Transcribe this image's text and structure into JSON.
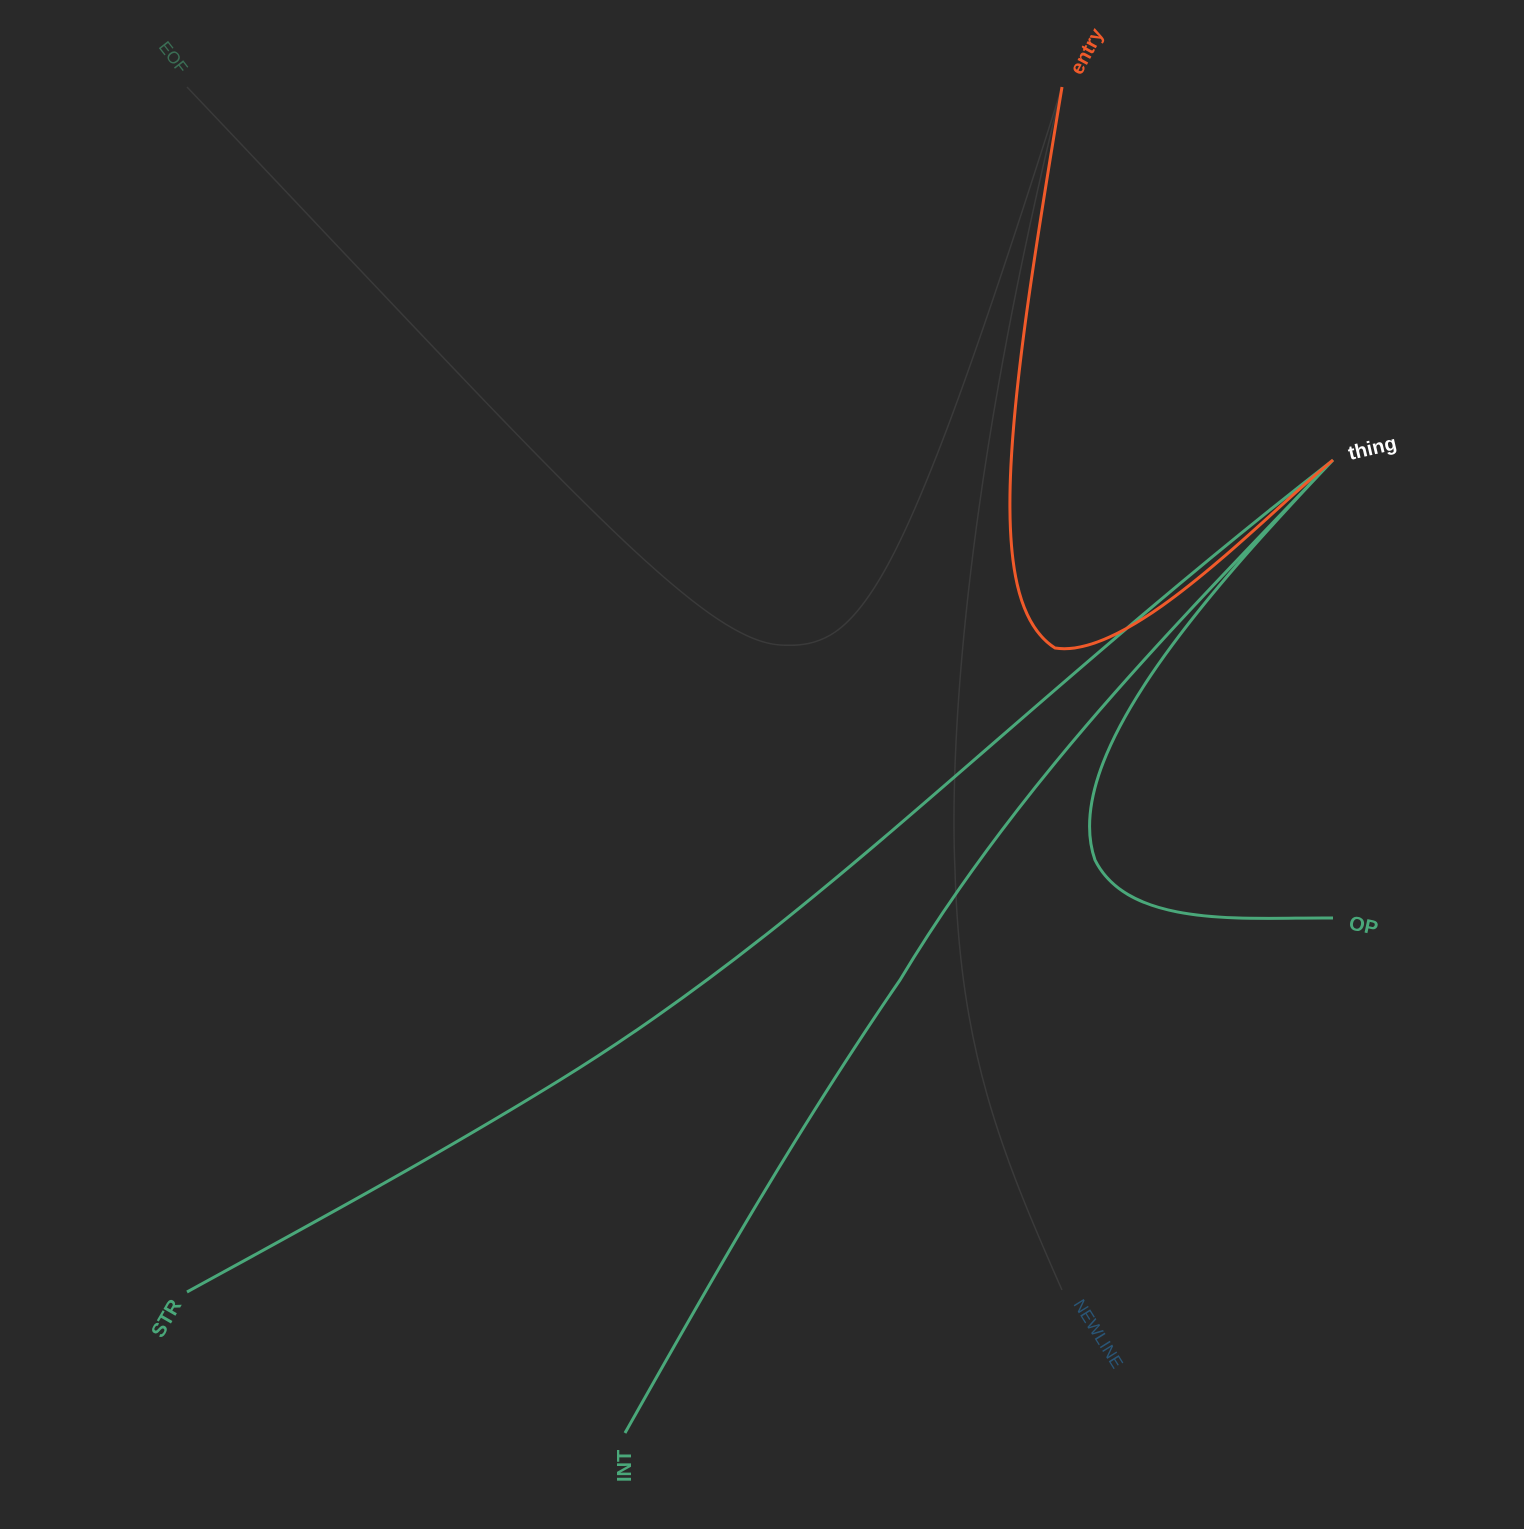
{
  "diagram": {
    "colors": {
      "background": "#292929",
      "focus_label": "#ffffff",
      "incoming": "#f05a2a",
      "outgoing": "#4aa87a",
      "dimmed_edge": "#3a3a3a",
      "newline_label": "#2a7bb8"
    },
    "focus_node": "thing",
    "nodes": {
      "entry": "entry",
      "thing": "thing",
      "op": "OP",
      "newline": "NEWLINE",
      "int": "INT",
      "str": "STR",
      "eof": "EOF"
    },
    "edges": [
      {
        "from": "entry",
        "to": "thing",
        "kind": "incoming"
      },
      {
        "from": "thing",
        "to": "OP",
        "kind": "outgoing"
      },
      {
        "from": "thing",
        "to": "INT",
        "kind": "outgoing"
      },
      {
        "from": "thing",
        "to": "STR",
        "kind": "outgoing"
      },
      {
        "from": "entry",
        "to": "EOF",
        "kind": "dimmed"
      },
      {
        "from": "entry",
        "to": "NEWLINE",
        "kind": "dimmed"
      }
    ]
  }
}
